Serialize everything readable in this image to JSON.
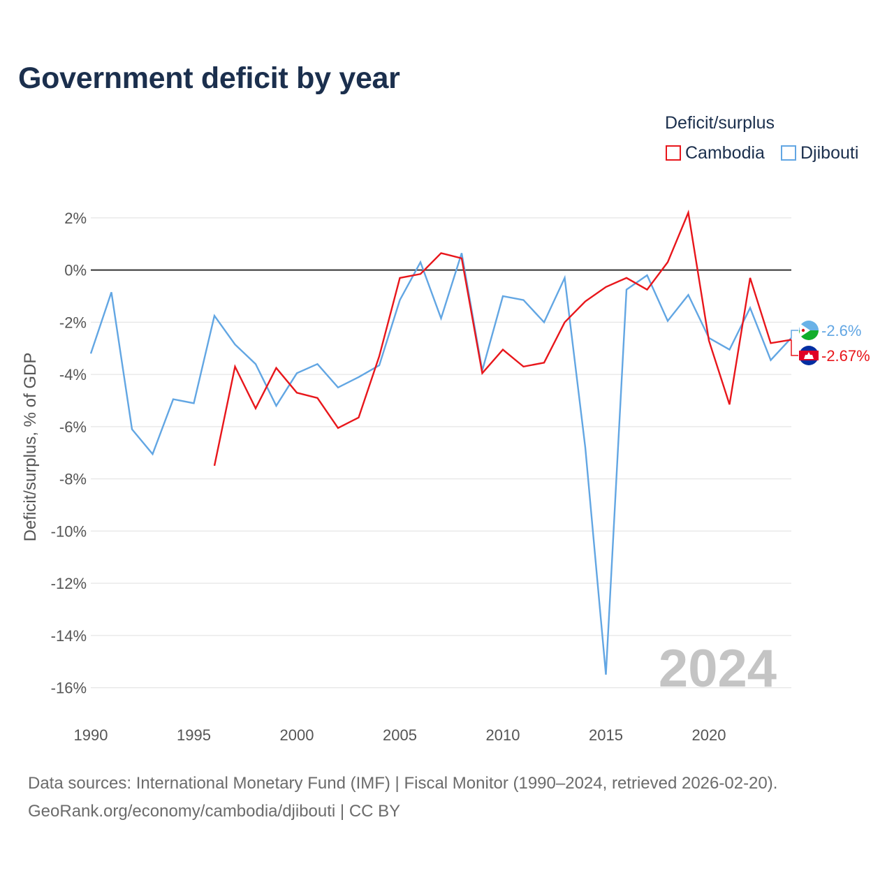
{
  "title": "Government deficit by year",
  "legend": {
    "title": "Deficit/surplus",
    "items": [
      {
        "name": "Cambodia",
        "color": "#e8161b"
      },
      {
        "name": "Djibouti",
        "color": "#62a6e3"
      }
    ]
  },
  "source": {
    "line1": "Data sources: International Monetary Fund (IMF) | Fiscal Monitor (1990–2024, retrieved 2026-02-20).",
    "line2": "GeoRank.org/economy/cambodia/djibouti | CC BY"
  },
  "chart_data": {
    "type": "line",
    "title": "Government deficit by year",
    "ylabel": "Deficit/surplus, % of GDP",
    "xlabel": "",
    "xlim": [
      1990,
      2024
    ],
    "ylim": [
      -17,
      2.8
    ],
    "x_ticks": [
      1990,
      1995,
      2000,
      2005,
      2010,
      2015,
      2020
    ],
    "y_ticks": [
      {
        "value": 2,
        "label": "2%"
      },
      {
        "value": 0,
        "label": "0%"
      },
      {
        "value": -2,
        "label": "-2%"
      },
      {
        "value": -4,
        "label": "-4%"
      },
      {
        "value": -6,
        "label": "-6%"
      },
      {
        "value": -8,
        "label": "-8%"
      },
      {
        "value": -10,
        "label": "-10%"
      },
      {
        "value": -12,
        "label": "-12%"
      },
      {
        "value": -14,
        "label": "-14%"
      },
      {
        "value": -16,
        "label": "-16%"
      }
    ],
    "current_year": "2024",
    "grid": true,
    "legend_position": "top-right",
    "series": [
      {
        "name": "Djibouti",
        "color": "#62a6e3",
        "end_label": "-2.6%",
        "flag_colors": [
          "#6ab2e7",
          "#12ad2b",
          "#ffffff",
          "#d7141a"
        ],
        "points": [
          [
            1990,
            -3.2
          ],
          [
            1991,
            -0.85
          ],
          [
            1992,
            -6.1
          ],
          [
            1993,
            -7.05
          ],
          [
            1994,
            -4.95
          ],
          [
            1995,
            -5.1
          ],
          [
            1996,
            -1.75
          ],
          [
            1997,
            -2.85
          ],
          [
            1998,
            -3.6
          ],
          [
            1999,
            -5.2
          ],
          [
            2000,
            -3.95
          ],
          [
            2001,
            -3.6
          ],
          [
            2002,
            -4.5
          ],
          [
            2003,
            -4.1
          ],
          [
            2004,
            -3.65
          ],
          [
            2005,
            -1.15
          ],
          [
            2006,
            0.3
          ],
          [
            2007,
            -1.85
          ],
          [
            2008,
            0.65
          ],
          [
            2009,
            -3.85
          ],
          [
            2010,
            -1.0
          ],
          [
            2011,
            -1.15
          ],
          [
            2012,
            -2.0
          ],
          [
            2013,
            -0.3
          ],
          [
            2014,
            -6.8
          ],
          [
            2015,
            -15.5
          ],
          [
            2016,
            -0.75
          ],
          [
            2017,
            -0.2
          ],
          [
            2018,
            -1.95
          ],
          [
            2019,
            -0.95
          ],
          [
            2020,
            -2.6
          ],
          [
            2021,
            -3.05
          ],
          [
            2022,
            -1.45
          ],
          [
            2023,
            -3.45
          ],
          [
            2024,
            -2.6
          ]
        ]
      },
      {
        "name": "Cambodia",
        "color": "#e8161b",
        "end_label": "-2.67%",
        "flag_colors": [
          "#032ea1",
          "#e00025",
          "#ffffff"
        ],
        "points": [
          [
            1996,
            -7.5
          ],
          [
            1997,
            -3.7
          ],
          [
            1998,
            -5.3
          ],
          [
            1999,
            -3.75
          ],
          [
            2000,
            -4.7
          ],
          [
            2001,
            -4.9
          ],
          [
            2002,
            -6.05
          ],
          [
            2003,
            -5.65
          ],
          [
            2004,
            -3.3
          ],
          [
            2005,
            -0.3
          ],
          [
            2006,
            -0.15
          ],
          [
            2007,
            0.65
          ],
          [
            2008,
            0.45
          ],
          [
            2009,
            -3.95
          ],
          [
            2010,
            -3.05
          ],
          [
            2011,
            -3.7
          ],
          [
            2012,
            -3.55
          ],
          [
            2013,
            -2.0
          ],
          [
            2014,
            -1.2
          ],
          [
            2015,
            -0.65
          ],
          [
            2016,
            -0.3
          ],
          [
            2017,
            -0.75
          ],
          [
            2018,
            0.3
          ],
          [
            2019,
            2.2
          ],
          [
            2020,
            -2.7
          ],
          [
            2021,
            -5.15
          ],
          [
            2022,
            -0.3
          ],
          [
            2023,
            -2.8
          ],
          [
            2024,
            -2.67
          ]
        ]
      }
    ]
  }
}
